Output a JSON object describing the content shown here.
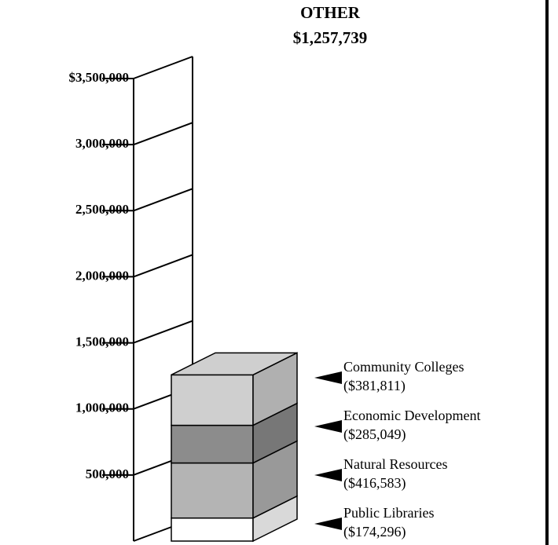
{
  "chart_data": {
    "type": "stacked-bar-3d",
    "title": "OTHER",
    "subtitle": "$1,257,739",
    "series": [
      {
        "name": "Public Libraries",
        "color": "#ffffff",
        "values": [
          174296
        ],
        "value_labels": [
          "($174,296)"
        ]
      },
      {
        "name": "Natural Resources",
        "color": "#b4b4b4",
        "values": [
          416583
        ],
        "value_labels": [
          "($416,583)"
        ]
      },
      {
        "name": "Economic Development",
        "color": "#8c8c8c",
        "values": [
          285049
        ],
        "value_labels": [
          "($285,049)"
        ]
      },
      {
        "name": "Community Colleges",
        "color": "#cfcfcf",
        "values": [
          381811
        ],
        "value_labels": [
          "($381,811)"
        ]
      }
    ],
    "ylim": [
      0,
      3500000
    ],
    "yticks": [
      {
        "value": 500000,
        "label": "500,000"
      },
      {
        "value": 1000000,
        "label": "1,000,000"
      },
      {
        "value": 1500000,
        "label": "1,500,000"
      },
      {
        "value": 2000000,
        "label": "2,000,000"
      },
      {
        "value": 2500000,
        "label": "2,500,000"
      },
      {
        "value": 3000000,
        "label": "3,000,000"
      },
      {
        "value": 3500000,
        "label": "$3,500,000"
      }
    ]
  }
}
